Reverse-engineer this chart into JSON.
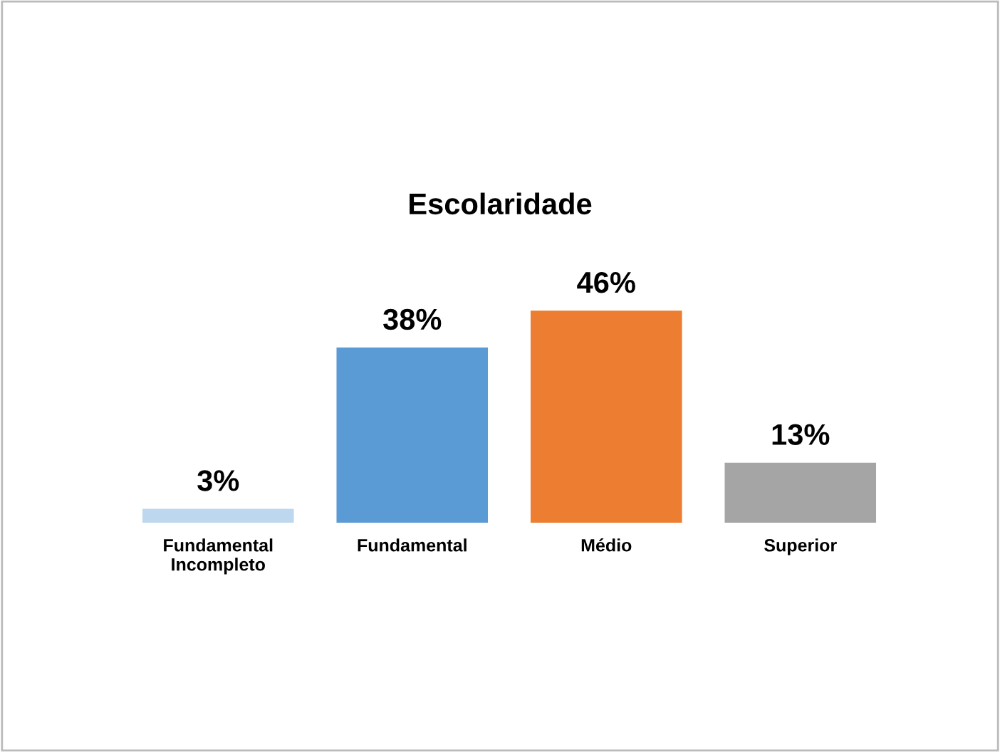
{
  "chart_data": {
    "type": "bar",
    "title": "Escolaridade",
    "categories": [
      "Fundamental\nIncompleto",
      "Fundamental",
      "Médio",
      "Superior"
    ],
    "values": [
      3,
      38,
      46,
      13
    ],
    "colors": [
      "#bdd7ee",
      "#5b9bd5",
      "#ed7d31",
      "#a5a5a5"
    ],
    "value_labels": [
      "3%",
      "38%",
      "46%",
      "13%"
    ],
    "grid": false,
    "legend": false
  }
}
